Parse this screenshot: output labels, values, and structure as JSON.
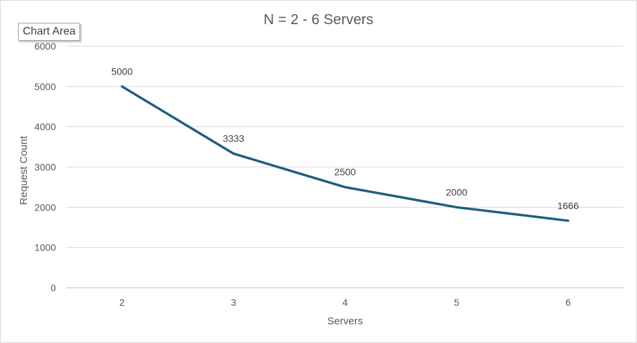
{
  "tooltip": {
    "label": "Chart Area"
  },
  "chart_data": {
    "type": "line",
    "title": "N = 2 - 6 Servers",
    "xlabel": "Servers",
    "ylabel": "Request Count",
    "categories": [
      "2",
      "3",
      "4",
      "5",
      "6"
    ],
    "series": [
      {
        "values": [
          5000,
          3333,
          2500,
          2000,
          1666
        ],
        "data_labels": [
          "5000",
          "3333",
          "2500",
          "2000",
          "1666"
        ],
        "color": "#1f5f7f"
      }
    ],
    "ylim": [
      0,
      6000
    ],
    "yticks": [
      "0",
      "1000",
      "2000",
      "3000",
      "4000",
      "5000",
      "6000"
    ],
    "grid": true,
    "legend": "none"
  }
}
